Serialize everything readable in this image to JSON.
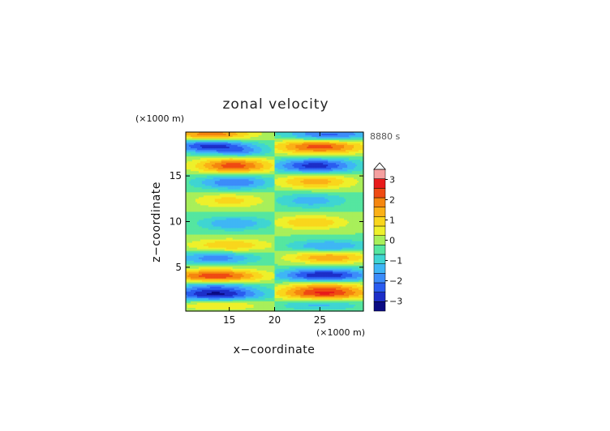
{
  "chart_data": {
    "type": "heatmap",
    "title": "zonal velocity",
    "xlabel": "x−coordinate",
    "ylabel": "z−coordinate",
    "x_unit": "(×1000 m)",
    "y_unit": "(×1000 m)",
    "time_label": "8880 s",
    "xlim": [
      10.2,
      29.8
    ],
    "ylim": [
      0.2,
      19.8
    ],
    "x_ticks": [
      15,
      20,
      25
    ],
    "y_ticks": [
      5,
      10,
      15
    ],
    "x_tick_labels": [
      "15",
      "20",
      "25"
    ],
    "y_tick_labels": [
      "5",
      "10",
      "15"
    ],
    "split_x": 20,
    "colorbar": {
      "min": -3.5,
      "max": 3.5,
      "step": 0.5,
      "extend_top": true,
      "labels": [
        3,
        2,
        1,
        0,
        -1,
        -2,
        -3
      ],
      "label_text": [
        "3",
        "2",
        "1",
        "0",
        "−1",
        "−2",
        "−3"
      ],
      "colors": [
        "#0b0b83",
        "#1d2ec8",
        "#2a5cf0",
        "#3c8cfa",
        "#3fb6f5",
        "#3fd5d2",
        "#55e6a0",
        "#a8ef5a",
        "#eef02b",
        "#f9d61c",
        "#fbb016",
        "#f5860f",
        "#ef4a13",
        "#e81a1a",
        "#f5a0a0"
      ]
    },
    "bands_left": [
      {
        "z": 19.5,
        "amp": 2.5,
        "x0": 13,
        "sx": 3.2,
        "sz": 0.5
      },
      {
        "z": 18.3,
        "amp": -2.8,
        "x0": 13,
        "sx": 3.2,
        "sz": 0.55
      },
      {
        "z": 17.6,
        "amp": -1.2,
        "x0": 16.5,
        "sx": 2.0,
        "sz": 0.4
      },
      {
        "z": 16.1,
        "amp": 2.8,
        "x0": 15.5,
        "sx": 3.0,
        "sz": 0.6
      },
      {
        "z": 14.3,
        "amp": -2.0,
        "x0": 15.5,
        "sx": 3.0,
        "sz": 0.6
      },
      {
        "z": 12.3,
        "amp": 1.2,
        "x0": 15,
        "sx": 2.8,
        "sz": 0.6
      },
      {
        "z": 9.8,
        "amp": -1.5,
        "x0": 15.5,
        "sx": 2.8,
        "sz": 0.55
      },
      {
        "z": 7.4,
        "amp": 1.5,
        "x0": 15,
        "sx": 3.2,
        "sz": 0.5
      },
      {
        "z": 6.0,
        "amp": -1.8,
        "x0": 13.5,
        "sx": 3.2,
        "sz": 0.5
      },
      {
        "z": 4.0,
        "amp": 3.0,
        "x0": 13.5,
        "sx": 3.6,
        "sz": 0.55
      },
      {
        "z": 3.0,
        "amp": -1.6,
        "x0": 13.5,
        "sx": 3.2,
        "sz": 0.45
      },
      {
        "z": 2.0,
        "amp": -3.0,
        "x0": 13.5,
        "sx": 3.6,
        "sz": 0.5
      },
      {
        "z": 0.9,
        "amp": 1.2,
        "x0": 14,
        "sx": 3.2,
        "sz": 0.45
      }
    ],
    "bands_right": [
      {
        "z": 19.5,
        "amp": -2.3,
        "x0": 26,
        "sx": 3.5,
        "sz": 0.5
      },
      {
        "z": 18.2,
        "amp": 2.8,
        "x0": 25,
        "sx": 3.5,
        "sz": 0.6
      },
      {
        "z": 16.1,
        "amp": -2.8,
        "x0": 24.5,
        "sx": 3.2,
        "sz": 0.6
      },
      {
        "z": 14.4,
        "amp": 1.8,
        "x0": 24.5,
        "sx": 3.0,
        "sz": 0.6
      },
      {
        "z": 12.3,
        "amp": -1.3,
        "x0": 24,
        "sx": 2.8,
        "sz": 0.6
      },
      {
        "z": 9.9,
        "amp": 1.5,
        "x0": 24,
        "sx": 2.8,
        "sz": 0.55
      },
      {
        "z": 7.3,
        "amp": -1.6,
        "x0": 26,
        "sx": 3.2,
        "sz": 0.5
      },
      {
        "z": 6.1,
        "amp": 2.0,
        "x0": 26,
        "sx": 3.2,
        "sz": 0.5
      },
      {
        "z": 4.1,
        "amp": -3.0,
        "x0": 25.5,
        "sx": 3.6,
        "sz": 0.55
      },
      {
        "z": 3.0,
        "amp": 1.5,
        "x0": 25.5,
        "sx": 3.2,
        "sz": 0.45
      },
      {
        "z": 2.1,
        "amp": 2.9,
        "x0": 25.5,
        "sx": 3.6,
        "sz": 0.5
      },
      {
        "z": 0.9,
        "amp": -1.2,
        "x0": 25,
        "sx": 3.2,
        "sz": 0.45
      }
    ]
  }
}
